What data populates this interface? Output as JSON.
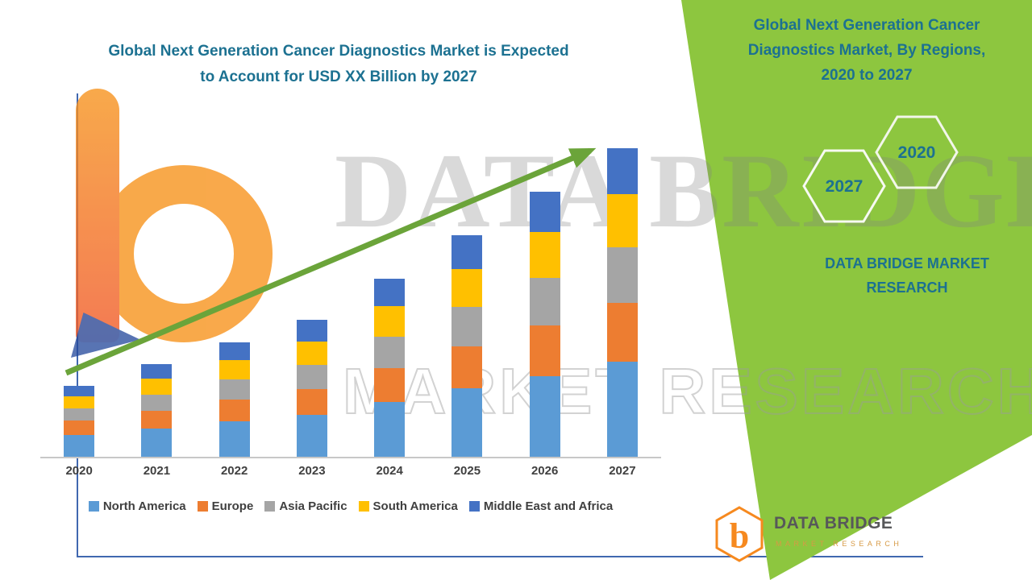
{
  "header": {
    "title_lines": [
      "Global Next Generation Cancer Diagnostics Market is Expected",
      "to Account for USD XX Billion by 2027"
    ]
  },
  "chart_data": {
    "type": "bar",
    "stacked": true,
    "title": "Global Next Generation Cancer Diagnostics Market is Expected to Account for USD XX Billion by 2027",
    "xlabel": "",
    "ylabel": "",
    "categories": [
      "2020",
      "2021",
      "2022",
      "2023",
      "2024",
      "2025",
      "2026",
      "2027"
    ],
    "series": [
      {
        "name": "North America",
        "color": "#5B9BD5",
        "values": [
          27,
          35,
          44,
          52,
          68,
          85,
          100,
          118
        ]
      },
      {
        "name": "Europe",
        "color": "#ED7D31",
        "values": [
          18,
          22,
          27,
          32,
          42,
          52,
          63,
          73
        ]
      },
      {
        "name": "Asia Pacific",
        "color": "#A5A5A5",
        "values": [
          15,
          20,
          25,
          30,
          39,
          49,
          59,
          69
        ]
      },
      {
        "name": "South America",
        "color": "#FFC000",
        "values": [
          15,
          20,
          24,
          29,
          38,
          47,
          57,
          66
        ]
      },
      {
        "name": "Middle East and Africa",
        "color": "#4472C4",
        "values": [
          13,
          18,
          22,
          27,
          34,
          42,
          50,
          57
        ]
      }
    ],
    "ylim": [
      0,
      400
    ],
    "grid": false,
    "value_axis_hidden": true,
    "legend_position": "bottom",
    "annotations": [
      {
        "type": "trend-arrow",
        "direction": "up-right",
        "color": "#6BA43A"
      }
    ]
  },
  "side_panel": {
    "bg_color": "#8DC63F",
    "title_lines": [
      "Global Next Generation Cancer",
      "Diagnostics Market, By Regions,",
      "2020 to 2027"
    ],
    "hexagon_front_label": "2027",
    "hexagon_back_label": "2020",
    "brand_lines": [
      "DATA BRIDGE MARKET",
      "RESEARCH"
    ]
  },
  "watermark": {
    "big_text": "DATA BRIDGE",
    "outline_text": "MARKET RESEARCH"
  },
  "footer_logo": {
    "monogram": "b",
    "name": "DATA BRIDGE",
    "tagline": "MARKET RESEARCH"
  },
  "colors": {
    "teal_text": "#1C7191",
    "panel_green": "#8DC63F",
    "arrow_green": "#6BA43A"
  }
}
